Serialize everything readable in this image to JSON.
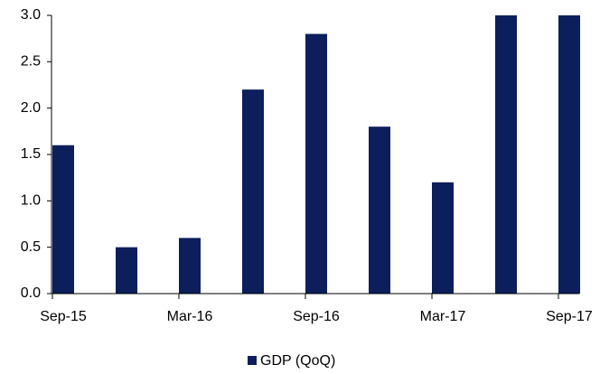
{
  "chart_data": {
    "type": "bar",
    "categories": [
      "Sep-15",
      null,
      "Mar-16",
      null,
      "Sep-16",
      null,
      "Mar-17",
      null,
      "Sep-17"
    ],
    "series": [
      {
        "name": "GDP (QoQ)",
        "color": "#0c1f5c",
        "values": [
          1.6,
          0.5,
          0.6,
          2.2,
          2.8,
          1.8,
          1.2,
          3.0,
          3.0
        ]
      }
    ],
    "ylim": [
      0,
      3.0
    ],
    "yticks": [
      {
        "value": 0,
        "label": "0.0"
      },
      {
        "value": 0.5,
        "label": "0.5"
      },
      {
        "value": 1,
        "label": "1.0"
      },
      {
        "value": 1.5,
        "label": "1.5"
      },
      {
        "value": 2,
        "label": "2.0"
      },
      {
        "value": 2.5,
        "label": "2.5"
      },
      {
        "value": 3,
        "label": "3.0"
      }
    ],
    "legend": "bottom"
  }
}
